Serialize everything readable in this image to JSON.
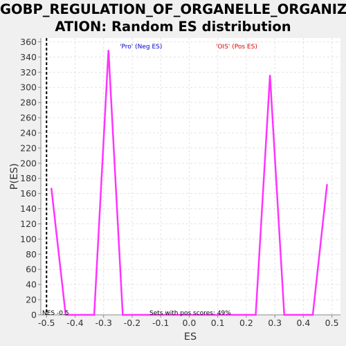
{
  "chart_data": {
    "type": "line",
    "title_line1": "GOBP_REGULATION_OF_ORGANELLE_ORGANIZ",
    "title_line2": "ATION: Random ES distribution",
    "xlabel": "ES",
    "ylabel": "P(ES)",
    "xlim": [
      -0.52,
      0.53
    ],
    "ylim": [
      0,
      365
    ],
    "xticks": [
      -0.5,
      -0.4,
      -0.3,
      -0.2,
      -0.1,
      0.0,
      0.1,
      0.2,
      0.3,
      0.4,
      0.5
    ],
    "xtick_labels": [
      "-0.5",
      "-0.4",
      "-0.3",
      "-0.2",
      "-0.1",
      "0.0",
      "0.1",
      "0.2",
      "0.3",
      "0.4",
      "0.5"
    ],
    "yticks": [
      0,
      20,
      40,
      60,
      80,
      100,
      120,
      140,
      160,
      180,
      200,
      220,
      240,
      260,
      280,
      300,
      320,
      340,
      360
    ],
    "grid": true,
    "series": [
      {
        "color": "#ff33ff",
        "x": [
          -0.483,
          -0.433,
          -0.333,
          -0.283,
          -0.233,
          0.233,
          0.283,
          0.333,
          0.433,
          0.483
        ],
        "y": [
          167,
          0,
          0,
          349,
          0,
          0,
          316,
          0,
          0,
          172
        ]
      }
    ],
    "reference_line": {
      "x": -0.5,
      "color": "#000000",
      "style": "dashed"
    },
    "annotations": {
      "neg_label": "'Pro' (Neg ES)",
      "neg_color": "#0000cc",
      "pos_label": "'OIS' (Pos ES)",
      "pos_color": "#dd0000",
      "nes_label": "NES -0.5",
      "sets_label": "Sets with pos scores: 49%"
    }
  }
}
